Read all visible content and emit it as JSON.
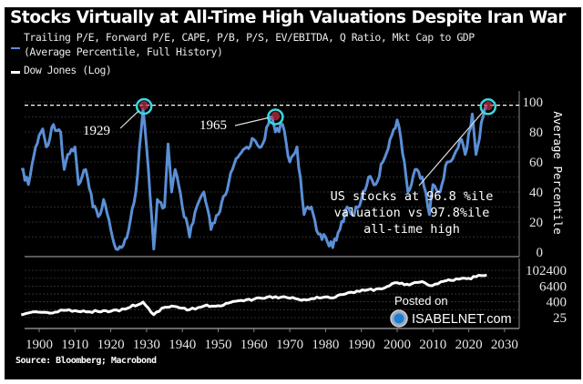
{
  "chart_data": [
    {
      "type": "line",
      "title": "Stocks Virtually at All-Time High Valuations Despite Iran War",
      "ylabel": "Average Percentile",
      "ylim": [
        0,
        100
      ],
      "yticks": [
        "100",
        "80",
        "60",
        "40",
        "20",
        "0"
      ],
      "xlim": [
        1895,
        2030
      ],
      "xticks": [
        "1900",
        "1910",
        "1920",
        "1930",
        "1940",
        "1950",
        "1960",
        "1970",
        "1980",
        "1990",
        "2000",
        "2010",
        "2020",
        "2030"
      ],
      "legend_position": "top-left",
      "grid": true,
      "reference_line": {
        "value": 97.8,
        "style": "dashed",
        "color": "#ffffff"
      },
      "series": [
        {
          "name": "Trailing P/E, Forward P/E, CAPE, P/B, P/S, EV/EBITDA, Q Ratio, Mkt Cap to GDP (Average Percentile, Full History)",
          "color": "#5b8fd6",
          "x": [
            1895,
            1897,
            1899,
            1901,
            1902,
            1904,
            1906,
            1907,
            1908,
            1910,
            1911,
            1913,
            1915,
            1917,
            1918,
            1920,
            1921,
            1923,
            1925,
            1927,
            1929,
            1930,
            1932,
            1933,
            1935,
            1936,
            1937,
            1938,
            1940,
            1942,
            1944,
            1946,
            1948,
            1950,
            1952,
            1954,
            1956,
            1958,
            1960,
            1962,
            1964,
            1965,
            1966,
            1968,
            1970,
            1972,
            1974,
            1976,
            1978,
            1980,
            1982,
            1984,
            1986,
            1988,
            1990,
            1992,
            1994,
            1996,
            1998,
            2000,
            2002,
            2003,
            2005,
            2007,
            2009,
            2010,
            2012,
            2014,
            2016,
            2018,
            2019,
            2021,
            2022,
            2024,
            2025
          ],
          "values": [
            55,
            45,
            70,
            82,
            70,
            85,
            80,
            55,
            65,
            70,
            45,
            55,
            30,
            25,
            35,
            15,
            5,
            3,
            15,
            40,
            95,
            70,
            2,
            35,
            30,
            72,
            40,
            55,
            30,
            10,
            30,
            40,
            15,
            25,
            38,
            55,
            65,
            70,
            75,
            70,
            85,
            90,
            80,
            85,
            60,
            70,
            25,
            30,
            12,
            10,
            3,
            15,
            30,
            25,
            35,
            50,
            45,
            60,
            75,
            88,
            60,
            40,
            55,
            50,
            25,
            45,
            40,
            60,
            65,
            75,
            65,
            92,
            65,
            90,
            97
          ]
        },
        {
          "name": "Dow Jones (Log)",
          "color": "#ffffff",
          "scale": "log",
          "ylim": [
            25,
            102400
          ],
          "yticks": [
            "102400",
            "6400",
            "400",
            "25"
          ],
          "x": [
            1895,
            1899,
            1903,
            1906,
            1910,
            1914,
            1918,
            1920,
            1924,
            1929,
            1932,
            1935,
            1937,
            1942,
            1946,
            1950,
            1955,
            1960,
            1966,
            1970,
            1974,
            1979,
            1982,
            1987,
            1988,
            1991,
            1995,
            2000,
            2002,
            2007,
            2009,
            2013,
            2015,
            2018,
            2020,
            2022,
            2025
          ],
          "values": [
            40,
            70,
            55,
            95,
            85,
            70,
            85,
            75,
            110,
            380,
            42,
            150,
            190,
            100,
            190,
            200,
            450,
            640,
            1000,
            750,
            600,
            840,
            800,
            2200,
            2000,
            3000,
            4000,
            11500,
            8000,
            14000,
            7000,
            15000,
            17500,
            25000,
            25000,
            33000,
            44000
          ]
        }
      ],
      "annotations": [
        {
          "label": "1929",
          "year": 1929,
          "value": 95
        },
        {
          "label": "1965",
          "year": 1965,
          "value": 90
        },
        {
          "label": "US stocks at 96.8 %ile valuation vs 97.8%ile all-time high",
          "lines": [
            "US stocks at 96.8 %ile",
            "valuation vs 97.8%ile",
            "all-time high"
          ],
          "year": 2025,
          "value": 96.8
        }
      ]
    }
  ],
  "legend": {
    "valuation_line1": "Trailing P/E, Forward P/E, CAPE, P/B, P/S, EV/EBITDA, Q Ratio, Mkt Cap to GDP",
    "valuation_line2": "(Average Percentile, Full History)",
    "dow": "Dow Jones (Log)"
  },
  "source": "Source: Bloomberg; Macrobond",
  "watermark": {
    "line1": "Posted on",
    "line2": "ISABELNET.com"
  },
  "colors": {
    "valuation": "#5b8fd6",
    "dow": "#ffffff",
    "highlight_circle": "#3cd6df",
    "peak_marker": "#c0304a"
  }
}
